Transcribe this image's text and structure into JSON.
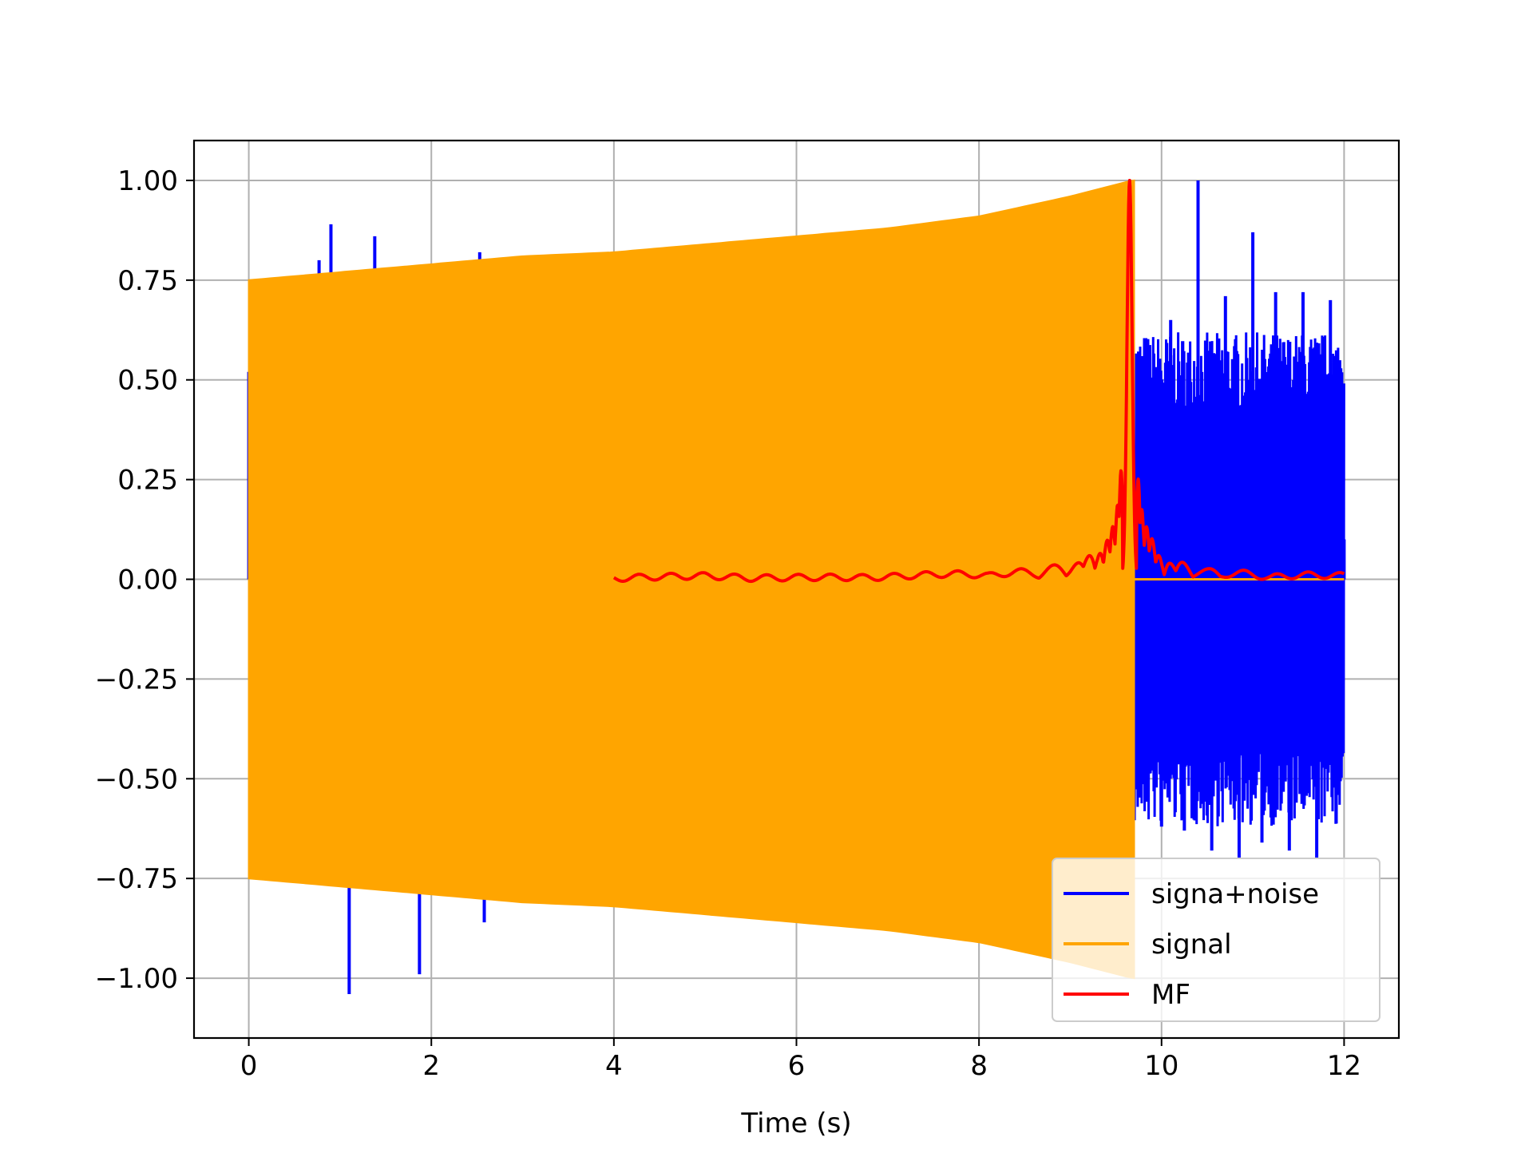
{
  "chart_data": {
    "type": "line",
    "title": "",
    "xlabel": "Time (s)",
    "ylabel": "",
    "xlim": [
      -0.6,
      12.6
    ],
    "ylim": [
      -1.15,
      1.1
    ],
    "x_ticks": [
      0,
      2,
      4,
      6,
      8,
      10,
      12
    ],
    "x_tick_labels": [
      "0",
      "2",
      "4",
      "6",
      "8",
      "10",
      "12"
    ],
    "y_ticks": [
      1.0,
      0.75,
      0.5,
      0.25,
      0.0,
      -0.25,
      -0.5,
      -0.75,
      -1.0
    ],
    "y_tick_labels": [
      "1.00",
      "0.75",
      "0.50",
      "0.25",
      "0.00",
      "−0.25",
      "−0.50",
      "−0.75",
      "−1.00"
    ],
    "grid": true,
    "legend_position": "lower-right",
    "series": [
      {
        "name": "signa+noise",
        "color": "#0000ff",
        "x": [
          0,
          0.45,
          0.77,
          0.9,
          1.1,
          1.38,
          1.87,
          2.53,
          2.58,
          9.68,
          9.8,
          10.0,
          10.1,
          10.25,
          10.4,
          10.55,
          10.7,
          10.85,
          11.0,
          11.1,
          11.25,
          11.4,
          11.55,
          11.7,
          11.85,
          12.0
        ],
        "y": [
          0.52,
          -0.76,
          0.8,
          0.89,
          -1.04,
          0.86,
          -0.99,
          0.82,
          -0.86,
          -0.42,
          0.5,
          -0.62,
          0.65,
          -0.63,
          1.0,
          -0.68,
          0.71,
          -0.7,
          0.87,
          -0.66,
          0.72,
          -0.68,
          0.72,
          -0.7,
          0.7,
          0.1
        ]
      },
      {
        "name": "signal",
        "color": "#ffa500",
        "x": [
          0,
          1,
          2,
          3,
          4,
          5,
          6,
          7,
          8,
          9,
          9.68,
          9.7,
          12.0
        ],
        "y": [
          0.75,
          0.77,
          0.79,
          0.81,
          0.82,
          0.84,
          0.86,
          0.88,
          0.91,
          0.96,
          1.0,
          0.0,
          0.0
        ]
      },
      {
        "name": "MF",
        "color": "#ff0000",
        "x": [
          4.0,
          4.5,
          5.0,
          5.5,
          6.0,
          6.5,
          7.0,
          7.5,
          8.0,
          8.5,
          9.0,
          9.3,
          9.5,
          9.6,
          9.65,
          9.7,
          9.8,
          10.0,
          10.5,
          11.0,
          11.5,
          12.0
        ],
        "y": [
          0.0,
          0.01,
          0.015,
          0.0,
          0.005,
          0.01,
          0.01,
          0.015,
          0.02,
          0.02,
          0.04,
          0.08,
          0.2,
          0.65,
          1.0,
          0.6,
          0.2,
          0.05,
          0.02,
          0.01,
          0.01,
          0.01
        ]
      }
    ]
  }
}
